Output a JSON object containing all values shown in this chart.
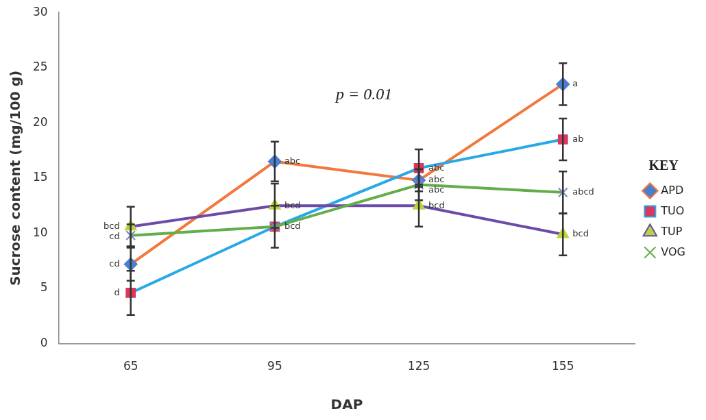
{
  "chart_data": {
    "type": "line",
    "xlabel": "DAP",
    "ylabel": "Sucrose content (mg/100 g)",
    "categories": [
      "65",
      "95",
      "125",
      "155"
    ],
    "ylim": [
      0,
      30
    ],
    "yticks": [
      0,
      5,
      10,
      15,
      20,
      25,
      30
    ],
    "grid": false,
    "legend": "right",
    "legend_title": "KEY",
    "annotations": [
      "p = 0.01"
    ],
    "series": [
      {
        "name": "APD",
        "color": "#f4773b",
        "marker": "diamond",
        "colors": [
          "#4a7fd0",
          "#4a7fd0",
          "#4a7fd0",
          "#4a7fd0"
        ],
        "values": [
          7.2,
          16.5,
          14.8,
          23.5
        ],
        "errors": [
          1.5,
          1.8,
          1.0,
          1.9
        ],
        "value_labels": [
          "cd",
          "abc",
          "abc",
          "a"
        ]
      },
      {
        "name": "TUO",
        "color": "#27a9e8",
        "marker": "square",
        "colors": [
          "#d8385e",
          "#d8385e",
          "#d8385e",
          "#d8385e"
        ],
        "values": [
          4.6,
          10.6,
          15.9,
          18.5
        ],
        "errors": [
          2.0,
          1.9,
          1.7,
          1.9
        ],
        "value_labels": [
          "d",
          "bcd",
          "abc",
          "ab"
        ]
      },
      {
        "name": "TUP",
        "color": "#6d4aa8",
        "marker": "triangle",
        "colors": [
          "#b8d43a",
          "#b8d43a",
          "#b8d43a",
          "#b8d43a"
        ],
        "values": [
          10.6,
          12.5,
          12.5,
          9.9
        ],
        "errors": [
          1.8,
          2.0,
          1.9,
          1.9
        ],
        "value_labels": [
          "bcd",
          "bcd",
          "bcd",
          "bcd"
        ]
      },
      {
        "name": "VOG",
        "color": "#63ad4a",
        "marker": "cross",
        "colors": [
          "#7a86c4",
          "#7a86c4",
          "#7a86c4",
          "#7a86c4"
        ],
        "values": [
          9.8,
          10.6,
          14.4,
          13.7
        ],
        "errors": [
          1.0,
          null,
          1.4,
          1.9
        ],
        "value_labels": [
          "cd",
          null,
          "abc",
          "abcd"
        ]
      }
    ]
  }
}
